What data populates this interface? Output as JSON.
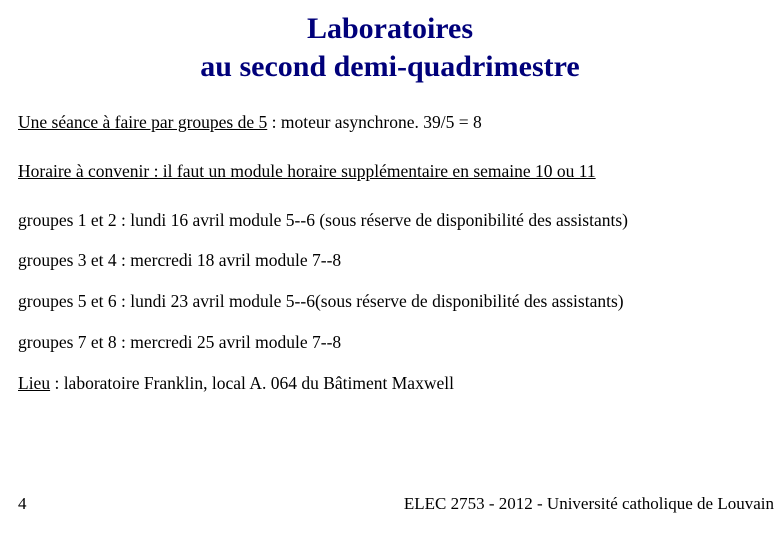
{
  "title_color": "#00007a",
  "text_color": "#000000",
  "background_color": "#ffffff",
  "title": {
    "line1": "Laboratoires",
    "line2": "au second demi-quadrimestre"
  },
  "lines": {
    "seance_label": "Une séance à faire par groupes de 5",
    "seance_rest": " : moteur asynchrone.  39/5 = 8",
    "horaire_label": "Horaire à convenir",
    "horaire_rest_u": " : il faut un module horaire supplémentaire en semaine 10 ou 11",
    "g12": "groupes 1 et 2 :  lundi 16 avril module 5‑-6 (sous réserve de disponibilité des assistants)",
    "g34": "groupes 3 et 4 :  mercredi 18 avril module 7‑-8",
    "g56": "groupes 5 et 6 :  lundi 23 avril module 5‑-6(sous réserve de disponibilité des assistants)",
    "g78": "groupes 7 et 8 :  mercredi 25 avril module 7‑-8",
    "lieu_label": "Lieu",
    "lieu_rest": " : laboratoire Franklin, local A. 064 du Bâtiment Maxwell"
  },
  "page_number": "4",
  "footer": "ELEC 2753  - 2012 - Université catholique de Louvain"
}
